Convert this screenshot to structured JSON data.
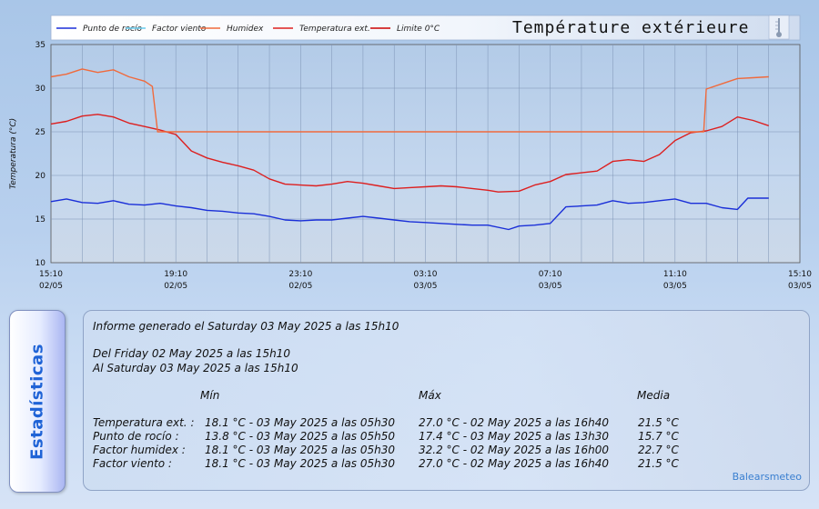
{
  "chart_data": {
    "type": "line",
    "title": "Température extérieure",
    "ylabel": "Temperatura (°C)",
    "ylim": [
      10,
      35
    ],
    "yticks": [
      10,
      15,
      20,
      25,
      30,
      35
    ],
    "xlim": [
      "2025-05-02 15:10",
      "2025-05-03 15:10"
    ],
    "xticks": [
      {
        "time": "15:10",
        "date": "02/05"
      },
      {
        "time": "19:10",
        "date": "02/05"
      },
      {
        "time": "23:10",
        "date": "02/05"
      },
      {
        "time": "03:10",
        "date": "03/05"
      },
      {
        "time": "07:10",
        "date": "03/05"
      },
      {
        "time": "11:10",
        "date": "03/05"
      },
      {
        "time": "15:10",
        "date": "03/05"
      }
    ],
    "grid": true,
    "legend_position": "top-left",
    "legend": [
      {
        "name": "Punto de rocío",
        "color": "#1a2fd8"
      },
      {
        "name": "Factor viento",
        "color": "#66ccee"
      },
      {
        "name": "Humidex",
        "color": "#f06a3c"
      },
      {
        "name": "Temperatura ext.",
        "color": "#dd1f1f"
      },
      {
        "name": "Limite 0°C",
        "color": "#cc0000"
      }
    ],
    "series": [
      {
        "name": "Temperatura ext.",
        "color": "#dd1f1f",
        "x": [
          "2025-05-02 15:10",
          "2025-05-02 15:40",
          "2025-05-02 16:10",
          "2025-05-02 16:40",
          "2025-05-02 17:10",
          "2025-05-02 17:40",
          "2025-05-02 18:10",
          "2025-05-02 18:40",
          "2025-05-02 19:10",
          "2025-05-02 19:40",
          "2025-05-02 20:10",
          "2025-05-02 20:40",
          "2025-05-02 21:10",
          "2025-05-02 21:40",
          "2025-05-02 22:10",
          "2025-05-02 22:40",
          "2025-05-02 23:10",
          "2025-05-02 23:40",
          "2025-05-03 00:10",
          "2025-05-03 00:40",
          "2025-05-03 01:10",
          "2025-05-03 01:40",
          "2025-05-03 02:10",
          "2025-05-03 02:40",
          "2025-05-03 03:10",
          "2025-05-03 03:40",
          "2025-05-03 04:10",
          "2025-05-03 04:40",
          "2025-05-03 05:10",
          "2025-05-03 05:30",
          "2025-05-03 06:10",
          "2025-05-03 06:40",
          "2025-05-03 07:10",
          "2025-05-03 07:40",
          "2025-05-03 08:10",
          "2025-05-03 08:40",
          "2025-05-03 09:10",
          "2025-05-03 09:40",
          "2025-05-03 10:10",
          "2025-05-03 10:40",
          "2025-05-03 11:10",
          "2025-05-03 11:40",
          "2025-05-03 12:10",
          "2025-05-03 12:40",
          "2025-05-03 13:10",
          "2025-05-03 13:40",
          "2025-05-03 14:10"
        ],
        "values": [
          25.9,
          26.2,
          26.8,
          27.0,
          26.7,
          26.0,
          25.6,
          25.2,
          24.7,
          22.8,
          22.0,
          21.5,
          21.1,
          20.6,
          19.6,
          19.0,
          18.9,
          18.8,
          19.0,
          19.3,
          19.1,
          18.8,
          18.5,
          18.6,
          18.7,
          18.8,
          18.7,
          18.5,
          18.3,
          18.1,
          18.2,
          18.9,
          19.3,
          20.1,
          20.3,
          20.5,
          21.6,
          21.8,
          21.6,
          22.4,
          24.0,
          24.9,
          25.1,
          25.6,
          26.7,
          26.3,
          25.7
        ]
      },
      {
        "name": "Humidex",
        "color": "#f06a3c",
        "x": [
          "2025-05-02 15:10",
          "2025-05-02 15:40",
          "2025-05-02 16:10",
          "2025-05-02 16:40",
          "2025-05-02 17:10",
          "2025-05-02 17:40",
          "2025-05-02 18:10",
          "2025-05-02 18:25",
          "2025-05-02 18:35",
          "2025-05-03 12:05",
          "2025-05-03 12:10",
          "2025-05-03 12:40",
          "2025-05-03 13:10",
          "2025-05-03 13:40",
          "2025-05-03 14:10"
        ],
        "values": [
          31.3,
          31.6,
          32.2,
          31.8,
          32.1,
          31.3,
          30.8,
          30.2,
          25.0,
          25.0,
          29.9,
          30.5,
          31.1,
          31.2,
          31.3
        ]
      },
      {
        "name": "Punto de rocío",
        "color": "#1a2fd8",
        "x": [
          "2025-05-02 15:10",
          "2025-05-02 15:40",
          "2025-05-02 16:10",
          "2025-05-02 16:40",
          "2025-05-02 17:10",
          "2025-05-02 17:40",
          "2025-05-02 18:10",
          "2025-05-02 18:40",
          "2025-05-02 19:10",
          "2025-05-02 19:40",
          "2025-05-02 20:10",
          "2025-05-02 20:40",
          "2025-05-02 21:10",
          "2025-05-02 21:40",
          "2025-05-02 22:10",
          "2025-05-02 22:40",
          "2025-05-02 23:10",
          "2025-05-02 23:40",
          "2025-05-03 00:10",
          "2025-05-03 00:40",
          "2025-05-03 01:10",
          "2025-05-03 01:40",
          "2025-05-03 02:10",
          "2025-05-03 02:40",
          "2025-05-03 03:10",
          "2025-05-03 03:40",
          "2025-05-03 04:10",
          "2025-05-03 04:40",
          "2025-05-03 05:10",
          "2025-05-03 05:50",
          "2025-05-03 06:10",
          "2025-05-03 06:40",
          "2025-05-03 07:10",
          "2025-05-03 07:40",
          "2025-05-03 08:10",
          "2025-05-03 08:40",
          "2025-05-03 09:10",
          "2025-05-03 09:40",
          "2025-05-03 10:10",
          "2025-05-03 10:40",
          "2025-05-03 11:10",
          "2025-05-03 11:40",
          "2025-05-03 12:10",
          "2025-05-03 12:40",
          "2025-05-03 13:10",
          "2025-05-03 13:30",
          "2025-05-03 14:10"
        ],
        "values": [
          17.0,
          17.3,
          16.9,
          16.8,
          17.1,
          16.7,
          16.6,
          16.8,
          16.5,
          16.3,
          16.0,
          15.9,
          15.7,
          15.6,
          15.3,
          14.9,
          14.8,
          14.9,
          14.9,
          15.1,
          15.3,
          15.1,
          14.9,
          14.7,
          14.6,
          14.5,
          14.4,
          14.3,
          14.3,
          13.8,
          14.2,
          14.3,
          14.5,
          16.4,
          16.5,
          16.6,
          17.1,
          16.8,
          16.9,
          17.1,
          17.3,
          16.8,
          16.8,
          16.3,
          16.1,
          17.4,
          17.4
        ]
      }
    ]
  },
  "stats": {
    "side_label": "Estadísticas",
    "generated": "Informe generado el Saturday 03 May 2025 a las 15h10",
    "from": "Del Friday 02 May 2025 a las 15h10",
    "to": "Al Saturday 03 May 2025 a las 15h10",
    "headers": {
      "min": "Mín",
      "max": "Máx",
      "avg": "Media"
    },
    "rows": [
      {
        "label": "Temperatura ext. :",
        "min": "18.1 °C - 03 May 2025 a las 05h30",
        "max": "27.0 °C - 02 May 2025 a las 16h40",
        "avg": "21.5 °C"
      },
      {
        "label": "Punto de rocío :",
        "min": "13.8 °C - 03 May 2025 a las 05h50",
        "max": "17.4 °C - 03 May 2025 a las 13h30",
        "avg": "15.7 °C"
      },
      {
        "label": "Factor humidex :",
        "min": "18.1 °C - 03 May 2025 a las 05h30",
        "max": "32.2 °C - 02 May 2025 a las 16h00",
        "avg": "22.7 °C"
      },
      {
        "label": "Factor viento :",
        "min": "18.1 °C - 03 May 2025 a las 05h30",
        "max": "27.0 °C - 02 May 2025 a las 16h40",
        "avg": "21.5 °C"
      }
    ],
    "brand": "Balearsmeteo"
  }
}
